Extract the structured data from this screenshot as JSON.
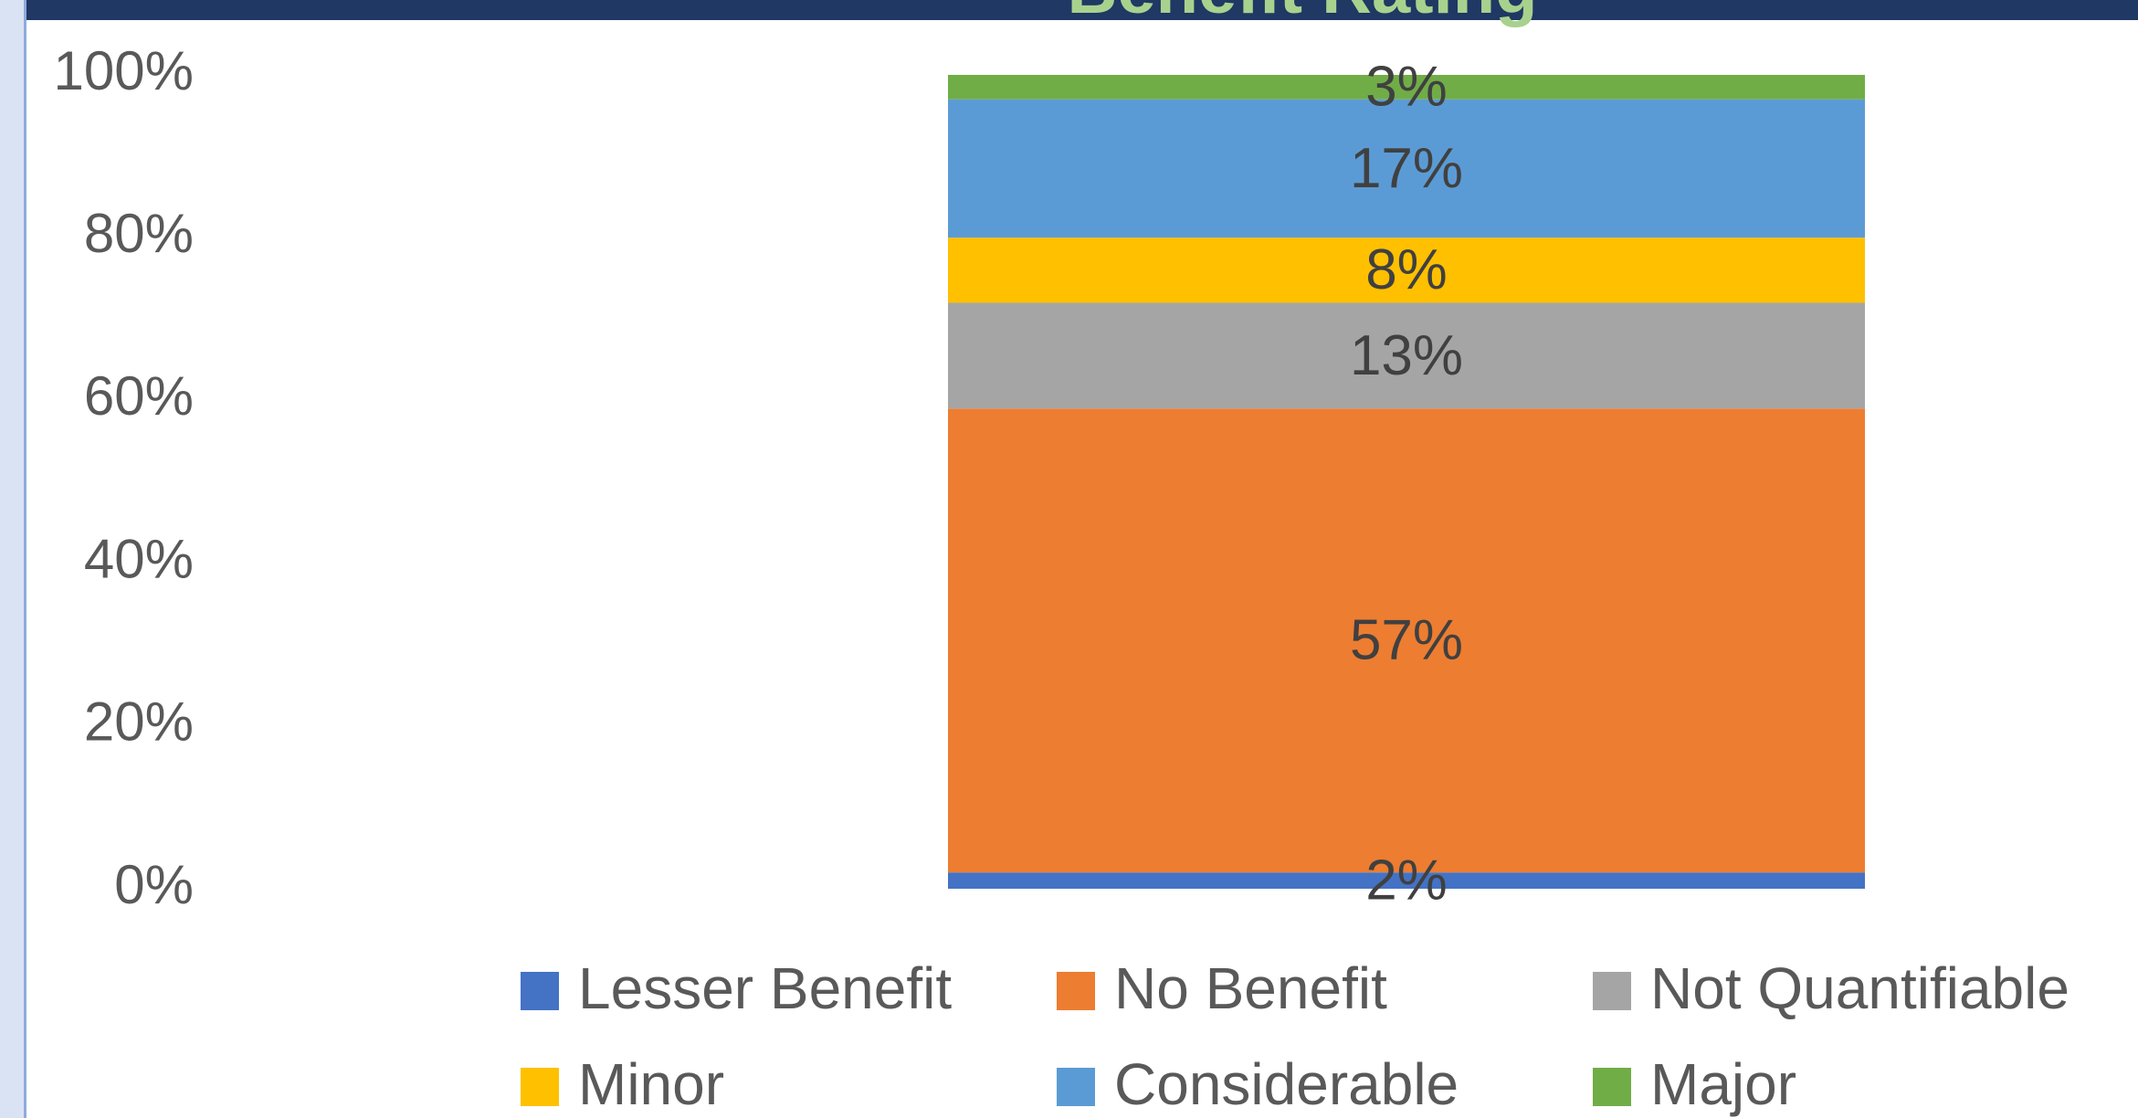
{
  "chart_data": {
    "type": "stacked_bar",
    "title": "Benefit Rating",
    "categories": [
      null
    ],
    "series": [
      {
        "name": "Lesser Benefit",
        "color": "#4472c4",
        "values": [
          2
        ],
        "value_labels": [
          "2%"
        ]
      },
      {
        "name": "No Benefit",
        "color": "#ed7d31",
        "values": [
          57
        ],
        "value_labels": [
          "57%"
        ]
      },
      {
        "name": "Not Quantifiable",
        "color": "#a5a5a5",
        "values": [
          13
        ],
        "value_labels": [
          "13%"
        ]
      },
      {
        "name": "Minor",
        "color": "#ffc000",
        "values": [
          8
        ],
        "value_labels": [
          "8%"
        ]
      },
      {
        "name": "Considerable",
        "color": "#5b9bd5",
        "values": [
          17
        ],
        "value_labels": [
          "17%"
        ]
      },
      {
        "name": "Major",
        "color": "#70ad47",
        "values": [
          3
        ],
        "value_labels": [
          "3%"
        ]
      }
    ],
    "ylim": [
      0,
      100
    ],
    "yticks": [
      {
        "value": 0,
        "label": "0%"
      },
      {
        "value": 20,
        "label": "20%"
      },
      {
        "value": 40,
        "label": "40%"
      },
      {
        "value": 60,
        "label": "60%"
      },
      {
        "value": 80,
        "label": "80%"
      },
      {
        "value": 100,
        "label": "100%"
      }
    ],
    "grid": false,
    "legend": "bottom"
  }
}
